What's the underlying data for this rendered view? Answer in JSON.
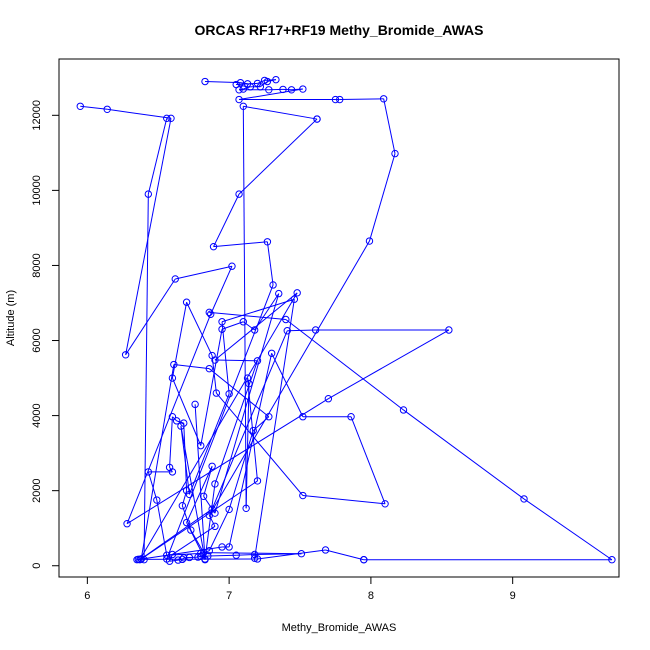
{
  "colors": {
    "series": "#0000ff",
    "axis": "#000000",
    "background": "#ffffff"
  },
  "chart_data": {
    "type": "line",
    "title": "ORCAS RF17+RF19 Methy_Bromide_AWAS",
    "xlabel": "Methy_Bromide_AWAS",
    "ylabel": "Altitude (m)",
    "xlim": [
      5.8,
      9.75
    ],
    "ylim": [
      -300,
      13500
    ],
    "xticks": [
      6,
      7,
      8,
      9
    ],
    "yticks": [
      0,
      2000,
      4000,
      6000,
      8000,
      10000,
      12000
    ],
    "markers": "open-circle",
    "grid": false,
    "legend": "none",
    "points": [
      [
        6.83,
        12900
      ],
      [
        7.08,
        12870
      ],
      [
        7.13,
        12840
      ],
      [
        7.05,
        12820
      ],
      [
        7.2,
        12850
      ],
      [
        7.25,
        12930
      ],
      [
        7.33,
        12950
      ],
      [
        7.27,
        12900
      ],
      [
        7.22,
        12760
      ],
      [
        7.15,
        12760
      ],
      [
        7.1,
        12700
      ],
      [
        7.07,
        12680
      ],
      [
        7.28,
        12680
      ],
      [
        7.38,
        12690
      ],
      [
        7.44,
        12680
      ],
      [
        7.52,
        12700
      ],
      [
        7.07,
        12420
      ],
      [
        7.75,
        12420
      ],
      [
        7.78,
        12420
      ],
      [
        8.09,
        12440
      ],
      [
        8.17,
        10980
      ],
      [
        7.99,
        8650
      ],
      [
        6.86,
        1340
      ],
      [
        6.9,
        1050
      ],
      [
        6.6,
        300
      ],
      [
        6.58,
        120
      ],
      [
        6.64,
        150
      ],
      [
        6.67,
        170
      ],
      [
        6.68,
        210
      ],
      [
        6.72,
        220
      ],
      [
        6.78,
        230
      ],
      [
        6.8,
        250
      ],
      [
        6.85,
        260
      ],
      [
        7.05,
        280
      ],
      [
        7.18,
        300
      ],
      [
        7.51,
        320
      ],
      [
        6.82,
        350
      ],
      [
        6.73,
        950
      ],
      [
        6.67,
        1600
      ],
      [
        6.7,
        2000
      ],
      [
        6.68,
        3800
      ],
      [
        6.63,
        3860
      ],
      [
        6.6,
        3970
      ],
      [
        6.58,
        2620
      ],
      [
        6.6,
        2500
      ],
      [
        6.43,
        2500
      ],
      [
        6.49,
        1750
      ],
      [
        6.56,
        280
      ],
      [
        6.8,
        330
      ],
      [
        6.86,
        400
      ],
      [
        7.0,
        1500
      ],
      [
        7.17,
        3600
      ],
      [
        7.28,
        3970
      ],
      [
        6.86,
        5250
      ],
      [
        6.61,
        5360
      ],
      [
        6.38,
        180
      ],
      [
        6.35,
        160
      ],
      [
        6.95,
        500
      ],
      [
        7.0,
        500
      ],
      [
        7.3,
        5660
      ],
      [
        7.52,
        3970
      ],
      [
        7.86,
        3970
      ],
      [
        8.1,
        1650
      ],
      [
        7.52,
        1870
      ],
      [
        6.91,
        4600
      ],
      [
        6.88,
        5600
      ],
      [
        6.7,
        7020
      ],
      [
        6.6,
        5000
      ],
      [
        6.8,
        3200
      ],
      [
        6.95,
        6300
      ],
      [
        7.1,
        6500
      ],
      [
        7.18,
        6280
      ],
      [
        7.35,
        7250
      ],
      [
        6.9,
        1400
      ],
      [
        6.82,
        1850
      ],
      [
        6.88,
        2650
      ],
      [
        6.7,
        1150
      ],
      [
        6.83,
        180
      ],
      [
        6.9,
        2180
      ],
      [
        7.2,
        5460
      ],
      [
        6.9,
        5480
      ],
      [
        7.48,
        7270
      ],
      [
        6.37,
        160
      ],
      [
        6.88,
        1510
      ],
      [
        7.41,
        6260
      ],
      [
        7.61,
        6280
      ],
      [
        8.55,
        6280
      ],
      [
        7.7,
        4450
      ],
      [
        6.28,
        1120
      ],
      [
        6.87,
        6700
      ],
      [
        7.02,
        7980
      ],
      [
        6.62,
        7640
      ],
      [
        6.27,
        5620
      ],
      [
        6.59,
        11920
      ],
      [
        6.14,
        12160
      ],
      [
        5.95,
        12240
      ]
    ],
    "segments": [
      [
        [
          7.62,
          11900
        ],
        [
          7.07,
          9900
        ],
        [
          6.89,
          8500
        ],
        [
          7.27,
          8630
        ],
        [
          7.31,
          7480
        ],
        [
          6.56,
          180
        ]
      ],
      [
        [
          6.4,
          160
        ],
        [
          6.43,
          9900
        ],
        [
          6.56,
          11920
        ]
      ],
      [
        [
          6.38,
          180
        ],
        [
          7.2,
          2260
        ],
        [
          7.13,
          5000
        ],
        [
          7.14,
          4850
        ],
        [
          7.12,
          1530
        ],
        [
          7.1,
          12240
        ],
        [
          7.62,
          11900
        ]
      ],
      [
        [
          6.86,
          6750
        ],
        [
          7.4,
          6560
        ],
        [
          8.23,
          4150
        ],
        [
          9.08,
          1780
        ],
        [
          9.7,
          160
        ],
        [
          7.95,
          160
        ]
      ],
      [
        [
          7.95,
          160
        ],
        [
          7.68,
          420
        ],
        [
          7.2,
          180
        ],
        [
          6.36,
          170
        ]
      ],
      [
        [
          6.76,
          4300
        ],
        [
          6.83,
          160
        ],
        [
          6.66,
          3720
        ],
        [
          6.72,
          1900
        ],
        [
          7.0,
          4580
        ],
        [
          6.95,
          6500
        ],
        [
          7.46,
          7100
        ],
        [
          7.18,
          200
        ]
      ]
    ]
  }
}
